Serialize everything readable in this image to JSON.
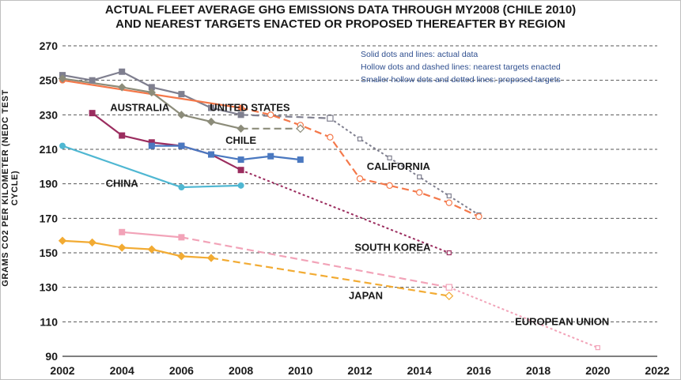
{
  "chart_data": {
    "type": "line",
    "title_line1": "ACTUAL FLEET AVERAGE GHG EMISSIONS DATA THROUGH MY2008 (CHILE 2010)",
    "title_line2": "AND NEAREST TARGETS ENACTED OR PROPOSED THEREAFTER BY REGION",
    "ylabel": "GRAMS CO2 PER KILOMETER (NEDC TEST CYCLE)",
    "xlabel": "",
    "xlim": [
      2002,
      2022
    ],
    "ylim": [
      90,
      270
    ],
    "xticks": [
      2002,
      2004,
      2006,
      2008,
      2010,
      2012,
      2014,
      2016,
      2018,
      2020,
      2022
    ],
    "yticks": [
      90,
      110,
      130,
      150,
      170,
      190,
      210,
      230,
      250,
      270
    ],
    "grid": "horizontal dashed",
    "legend_notes": [
      "Solid dots and lines: actual data",
      "Hollow dots and dashed lines: nearest targets enacted",
      "Smaller hollow dots and dotted lines: proposed targets"
    ],
    "series": [
      {
        "name": "UNITED STATES",
        "color": "#7f7f8f",
        "marker": "square",
        "actual": [
          [
            2002,
            253
          ],
          [
            2003,
            250
          ],
          [
            2004,
            255
          ],
          [
            2005,
            246
          ],
          [
            2006,
            242
          ],
          [
            2007,
            234
          ],
          [
            2008,
            230
          ]
        ],
        "enacted": [
          [
            2008,
            230
          ],
          [
            2011,
            228
          ]
        ],
        "proposed": [
          [
            2011,
            228
          ],
          [
            2012,
            216
          ],
          [
            2013,
            205
          ],
          [
            2014,
            194
          ],
          [
            2015,
            183
          ],
          [
            2016,
            172
          ]
        ]
      },
      {
        "name": "CALIFORNIA",
        "color": "#f4784a",
        "marker": "circle",
        "actual": [
          [
            2002,
            250
          ],
          [
            2008,
            234
          ]
        ],
        "enacted": [
          [
            2008,
            234
          ],
          [
            2009,
            230
          ],
          [
            2010,
            224
          ],
          [
            2011,
            217
          ],
          [
            2012,
            193
          ],
          [
            2013,
            189
          ],
          [
            2014,
            185
          ],
          [
            2015,
            179
          ],
          [
            2016,
            171
          ]
        ],
        "proposed": []
      },
      {
        "name": "AUSTRALIA",
        "color": "#8c8c7a",
        "marker": "diamond",
        "actual": [
          [
            2002,
            251
          ],
          [
            2004,
            246
          ],
          [
            2005,
            243
          ],
          [
            2006,
            230
          ],
          [
            2007,
            226
          ],
          [
            2008,
            222
          ]
        ],
        "enacted": [
          [
            2008,
            222
          ],
          [
            2010,
            222
          ]
        ],
        "proposed": []
      },
      {
        "name": "SOUTH KOREA",
        "color": "#9b2d5f",
        "marker": "square",
        "actual": [
          [
            2003,
            231
          ],
          [
            2004,
            218
          ],
          [
            2005,
            214
          ],
          [
            2006,
            212
          ],
          [
            2007,
            207
          ],
          [
            2008,
            198
          ]
        ],
        "enacted": [],
        "proposed": [
          [
            2008,
            198
          ],
          [
            2015,
            150
          ]
        ]
      },
      {
        "name": "CHILE",
        "color": "#4a78c0",
        "marker": "square",
        "actual": [
          [
            2005,
            212
          ],
          [
            2006,
            212
          ],
          [
            2007,
            207
          ],
          [
            2008,
            204
          ],
          [
            2009,
            206
          ],
          [
            2010,
            204
          ]
        ],
        "enacted": [],
        "proposed": []
      },
      {
        "name": "CHINA",
        "color": "#4fb7d2",
        "marker": "circle",
        "actual": [
          [
            2002,
            212
          ],
          [
            2006,
            188
          ],
          [
            2008,
            189
          ]
        ],
        "enacted": [],
        "proposed": []
      },
      {
        "name": "EUROPEAN UNION",
        "color": "#f2a3b8",
        "marker": "square",
        "actual": [
          [
            2004,
            162
          ],
          [
            2006,
            159
          ]
        ],
        "enacted": [
          [
            2006,
            159
          ],
          [
            2015,
            130
          ]
        ],
        "proposed": [
          [
            2015,
            130
          ],
          [
            2020,
            95
          ]
        ]
      },
      {
        "name": "JAPAN",
        "color": "#f2ab33",
        "marker": "diamond",
        "actual": [
          [
            2002,
            157
          ],
          [
            2003,
            156
          ],
          [
            2004,
            153
          ],
          [
            2005,
            152
          ],
          [
            2006,
            148
          ],
          [
            2007,
            147
          ]
        ],
        "enacted": [
          [
            2007,
            147
          ],
          [
            2015,
            125
          ]
        ],
        "proposed": []
      }
    ]
  }
}
